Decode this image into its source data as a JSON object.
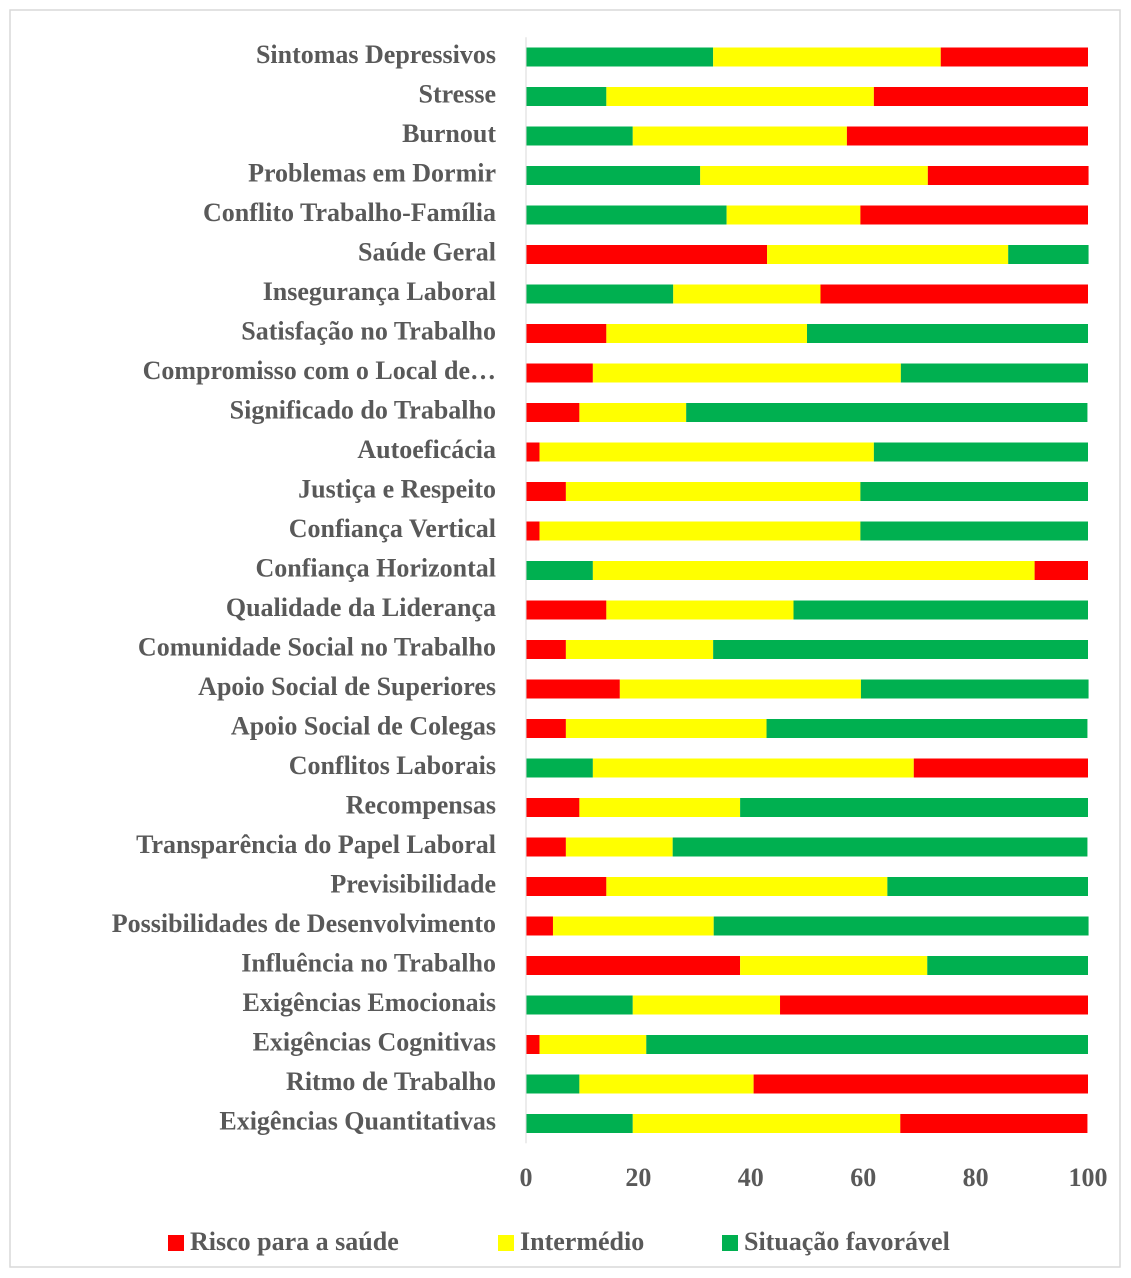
{
  "chart_data": {
    "type": "stacked_barh",
    "categories": [
      "Sintomas Depressivos",
      "Stresse",
      "Burnout",
      "Problemas em Dormir",
      "Conflito Trabalho-Família",
      "Saúde Geral",
      "Insegurança Laboral",
      "Satisfação no Trabalho",
      "Compromisso com o Local de…",
      "Significado do Trabalho",
      "Autoeficácia",
      "Justiça e Respeito",
      "Confiança Vertical",
      "Confiança Horizontal",
      "Qualidade da Liderança",
      "Comunidade Social no Trabalho",
      "Apoio Social de Superiores",
      "Apoio Social de Colegas",
      "Conflitos Laborais",
      "Recompensas",
      "Transparência do Papel Laboral",
      "Previsibilidade",
      "Possibilidades de Desenvolvimento",
      "Influência no Trabalho",
      "Exigências Emocionais",
      "Exigências Cognitivas",
      "Ritmo de Trabalho",
      "Exigências Quantitativas"
    ],
    "series": [
      {
        "name": "Risco para a saúde",
        "color": "#ff0000",
        "values": [
          26.2,
          38.1,
          42.9,
          28.6,
          40.5,
          42.9,
          47.6,
          14.3,
          11.9,
          9.5,
          2.4,
          7.1,
          2.4,
          9.5,
          14.3,
          7.1,
          16.7,
          7.1,
          31.0,
          9.5,
          7.1,
          14.3,
          4.8,
          38.1,
          54.8,
          2.4,
          59.5,
          33.3
        ]
      },
      {
        "name": "Intermédio",
        "color": "#ffff00",
        "values": [
          40.5,
          47.6,
          38.1,
          40.5,
          23.8,
          42.9,
          26.2,
          35.7,
          54.8,
          19.0,
          59.5,
          52.4,
          57.1,
          78.6,
          33.3,
          26.2,
          42.9,
          35.7,
          57.1,
          28.6,
          19.0,
          50.0,
          28.6,
          33.3,
          26.2,
          19.0,
          31.0,
          47.6
        ]
      },
      {
        "name": "Situação favorável",
        "color": "#00b050",
        "values": [
          33.3,
          14.3,
          19.0,
          31.0,
          35.7,
          14.3,
          26.2,
          50.0,
          33.3,
          71.4,
          38.1,
          40.5,
          40.5,
          11.9,
          52.4,
          66.7,
          40.5,
          57.1,
          11.9,
          61.9,
          73.8,
          35.7,
          66.7,
          28.6,
          19.0,
          78.6,
          9.5,
          19.0
        ]
      }
    ],
    "reverse_stack": [
      true,
      true,
      true,
      true,
      true,
      false,
      true,
      false,
      false,
      false,
      false,
      false,
      false,
      true,
      false,
      false,
      false,
      false,
      true,
      false,
      false,
      false,
      false,
      false,
      true,
      false,
      true,
      true
    ],
    "xlim": [
      0,
      100
    ],
    "xticks": [
      0,
      20,
      40,
      60,
      80,
      100
    ],
    "legend": "bottom"
  }
}
